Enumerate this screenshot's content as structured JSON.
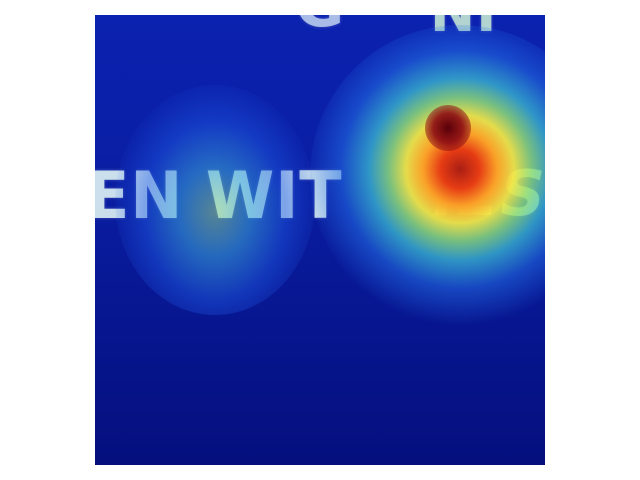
{
  "image": {
    "background_color": "#ffffff",
    "heatmap_colors": {
      "cold": "#0a1fa6",
      "mid": "#3cbed2",
      "warm": "#f0e646",
      "hot": "#e63c14",
      "peak": "#5a000a"
    },
    "text_fragments": {
      "top_left": "G",
      "top_right": "NI",
      "middle_left": "EN WIT",
      "middle_right": "IES"
    }
  }
}
